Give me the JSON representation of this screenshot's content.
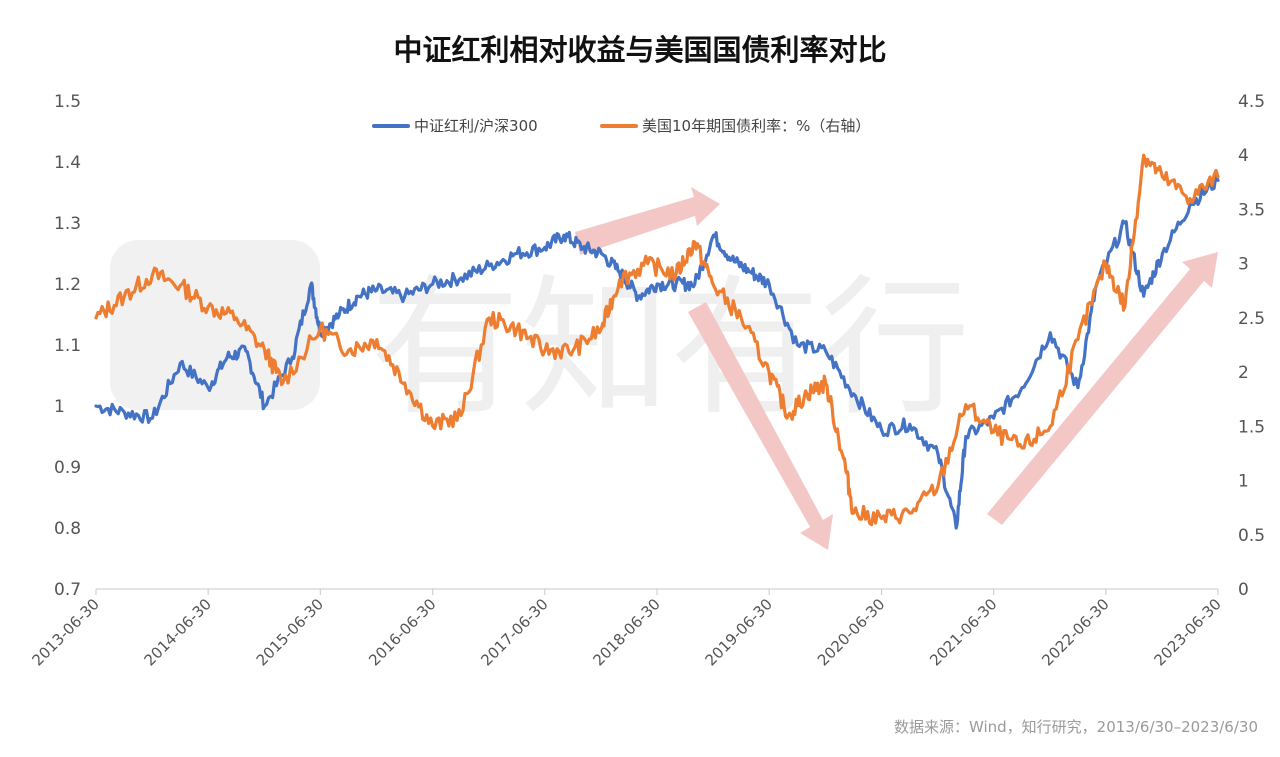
{
  "chart_data": {
    "type": "line",
    "title": "中证红利相对收益与美国国债利率对比",
    "source": "数据来源：Wind，知行研究，2013/6/30–2023/6/30",
    "watermark": "有知有行",
    "x_range": [
      "2013-06-30",
      "2023-06-30"
    ],
    "x_ticks": [
      "2013-06-30",
      "2014-06-30",
      "2015-06-30",
      "2016-06-30",
      "2017-06-30",
      "2018-06-30",
      "2019-06-30",
      "2020-06-30",
      "2021-06-30",
      "2022-06-30",
      "2023-06-30"
    ],
    "y_left": {
      "range": [
        0.7,
        1.5
      ],
      "ticks": [
        "0.7",
        "0.8",
        "0.9",
        "1",
        "1.1",
        "1.2",
        "1.3",
        "1.4",
        "1.5"
      ]
    },
    "y_right": {
      "range": [
        0,
        4.5
      ],
      "ticks": [
        "0",
        "0.5",
        "1",
        "1.5",
        "2",
        "2.5",
        "3",
        "3.5",
        "4",
        "4.5"
      ]
    },
    "grid": false,
    "legend_position": "top-center",
    "series": [
      {
        "name": "中证红利/沪深300",
        "axis": "left",
        "color": "#4472c4",
        "x": [
          "2013-06-30",
          "2013-09-30",
          "2013-12-31",
          "2014-03-31",
          "2014-06-30",
          "2014-08-31",
          "2014-10-31",
          "2014-12-31",
          "2015-03-31",
          "2015-05-31",
          "2015-06-30",
          "2015-08-31",
          "2015-10-31",
          "2015-12-31",
          "2016-03-31",
          "2016-06-30",
          "2016-09-30",
          "2016-12-31",
          "2017-03-31",
          "2017-06-30",
          "2017-08-31",
          "2017-10-31",
          "2017-12-31",
          "2018-02-28",
          "2018-04-30",
          "2018-06-30",
          "2018-08-31",
          "2018-10-31",
          "2018-12-31",
          "2019-02-28",
          "2019-04-30",
          "2019-06-30",
          "2019-09-30",
          "2019-12-31",
          "2020-03-31",
          "2020-06-30",
          "2020-09-30",
          "2020-12-31",
          "2021-02-28",
          "2021-03-31",
          "2021-06-30",
          "2021-09-30",
          "2021-12-31",
          "2022-03-31",
          "2022-05-31",
          "2022-08-31",
          "2022-10-31",
          "2022-12-31",
          "2023-03-31",
          "2023-06-30"
        ],
        "values": [
          1.0,
          0.99,
          0.98,
          1.07,
          1.03,
          1.08,
          1.09,
          1.0,
          1.08,
          1.2,
          1.12,
          1.15,
          1.18,
          1.19,
          1.18,
          1.2,
          1.21,
          1.23,
          1.25,
          1.26,
          1.28,
          1.26,
          1.25,
          1.22,
          1.18,
          1.2,
          1.2,
          1.2,
          1.28,
          1.24,
          1.22,
          1.2,
          1.1,
          1.09,
          1.02,
          0.96,
          0.97,
          0.92,
          0.8,
          0.95,
          0.98,
          1.03,
          1.12,
          1.03,
          1.2,
          1.3,
          1.18,
          1.25,
          1.33,
          1.37
        ]
      },
      {
        "name": "美国10年期国债利率：%（右轴）",
        "axis": "right",
        "color": "#ed7d31",
        "x": [
          "2013-06-30",
          "2013-09-30",
          "2013-12-31",
          "2014-03-31",
          "2014-06-30",
          "2014-09-30",
          "2014-12-31",
          "2015-02-28",
          "2015-06-30",
          "2015-09-30",
          "2015-12-31",
          "2016-03-31",
          "2016-06-30",
          "2016-09-30",
          "2016-12-31",
          "2017-03-31",
          "2017-06-30",
          "2017-09-30",
          "2017-12-31",
          "2018-02-28",
          "2018-05-31",
          "2018-08-31",
          "2018-10-31",
          "2018-12-31",
          "2019-03-31",
          "2019-06-30",
          "2019-08-31",
          "2019-10-31",
          "2019-12-31",
          "2020-02-28",
          "2020-03-31",
          "2020-06-30",
          "2020-09-30",
          "2020-12-31",
          "2021-03-31",
          "2021-06-30",
          "2021-09-30",
          "2021-12-31",
          "2022-03-31",
          "2022-06-30",
          "2022-08-31",
          "2022-10-31",
          "2022-12-31",
          "2023-03-31",
          "2023-06-30"
        ],
        "values": [
          2.5,
          2.7,
          2.9,
          2.8,
          2.6,
          2.5,
          2.2,
          1.9,
          2.4,
          2.2,
          2.3,
          1.9,
          1.5,
          1.6,
          2.5,
          2.4,
          2.2,
          2.2,
          2.4,
          2.85,
          3.0,
          2.9,
          3.2,
          2.8,
          2.5,
          2.0,
          1.6,
          1.8,
          1.9,
          1.2,
          0.7,
          0.65,
          0.7,
          0.95,
          1.7,
          1.45,
          1.3,
          1.5,
          2.3,
          3.0,
          2.6,
          4.0,
          3.8,
          3.6,
          3.8
        ]
      }
    ]
  }
}
